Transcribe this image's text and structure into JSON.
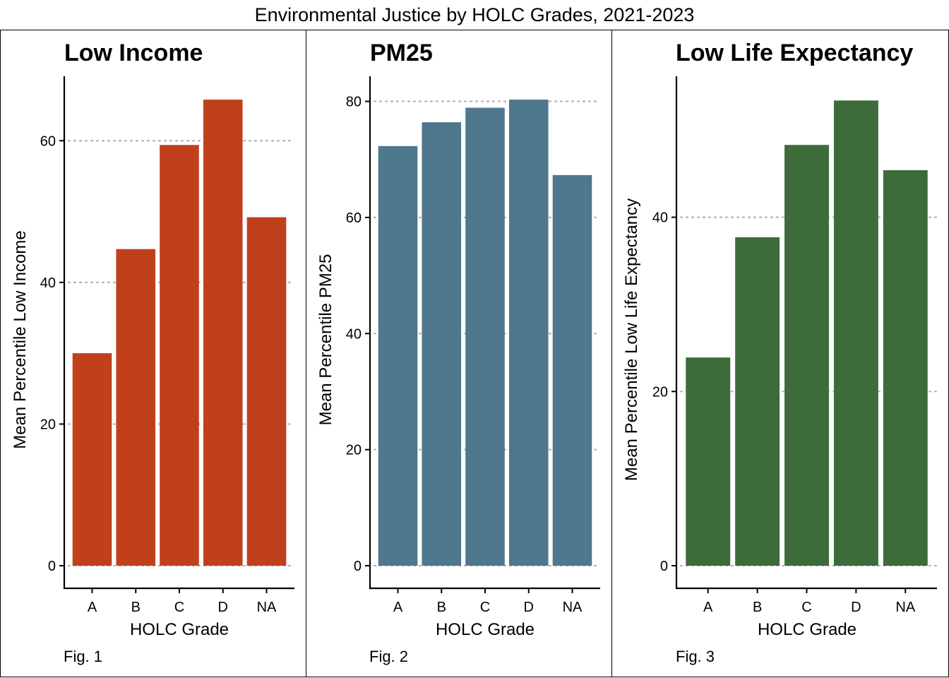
{
  "title": "Environmental Justice by HOLC Grades, 2021-2023",
  "chart_data": [
    {
      "type": "bar",
      "title": "Low Income",
      "caption": "Fig. 1",
      "xlabel": "HOLC Grade",
      "ylabel": "Mean Percentile Low Income",
      "categories": [
        "A",
        "B",
        "C",
        "D",
        "NA"
      ],
      "values": [
        30.0,
        44.7,
        59.4,
        65.8,
        49.2
      ],
      "ylim": [
        0,
        69.0
      ],
      "yticks": [
        0,
        20,
        40,
        60
      ],
      "color": "#c1401c",
      "grid": "horizontal dotted"
    },
    {
      "type": "bar",
      "title": "PM25",
      "caption": "Fig. 2",
      "xlabel": "HOLC Grade",
      "ylabel": "Mean Percentile PM25",
      "categories": [
        "A",
        "B",
        "C",
        "D",
        "NA"
      ],
      "values": [
        72.3,
        76.4,
        78.9,
        80.3,
        67.3
      ],
      "ylim": [
        0,
        84.2
      ],
      "yticks": [
        0,
        20,
        40,
        60,
        80
      ],
      "color": "#4f778d",
      "grid": "horizontal dotted"
    },
    {
      "type": "bar",
      "title": "Low Life Expectancy",
      "caption": "Fig. 3",
      "xlabel": "HOLC Grade",
      "ylabel": "Mean Percentile Low Life Expectancy",
      "categories": [
        "A",
        "B",
        "C",
        "D",
        "NA"
      ],
      "values": [
        23.9,
        37.7,
        48.3,
        53.4,
        45.4
      ],
      "ylim": [
        0,
        56.1
      ],
      "yticks": [
        0,
        20,
        40
      ],
      "color": "#3d6b3a",
      "grid": "horizontal dotted"
    }
  ]
}
